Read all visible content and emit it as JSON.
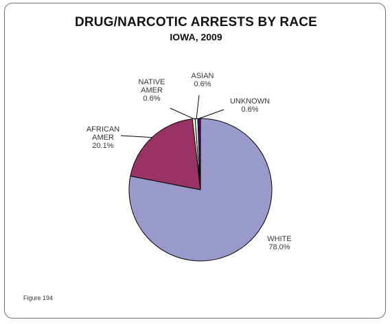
{
  "chart_data": {
    "type": "pie",
    "title": "DRUG/NARCOTIC ARRESTS BY RACE",
    "subtitle": "IOWA, 2009",
    "slices": [
      {
        "label_lines": [
          "WHITE",
          "78.0%"
        ],
        "value": 78.0,
        "color": "#9999cc"
      },
      {
        "label_lines": [
          "AFRICAN",
          "AMER",
          "20.1%"
        ],
        "value": 20.1,
        "color": "#993366"
      },
      {
        "label_lines": [
          "NATIVE",
          "AMER",
          "0.6%"
        ],
        "value": 0.6,
        "color": "#ffffcc"
      },
      {
        "label_lines": [
          "ASIAN",
          "0.6%"
        ],
        "value": 0.6,
        "color": "#ccffff"
      },
      {
        "label_lines": [
          "UNKNOWN",
          "0.6%"
        ],
        "value": 0.6,
        "color": "#660066"
      }
    ]
  },
  "footer": {
    "figure_label": "Figure 194"
  }
}
